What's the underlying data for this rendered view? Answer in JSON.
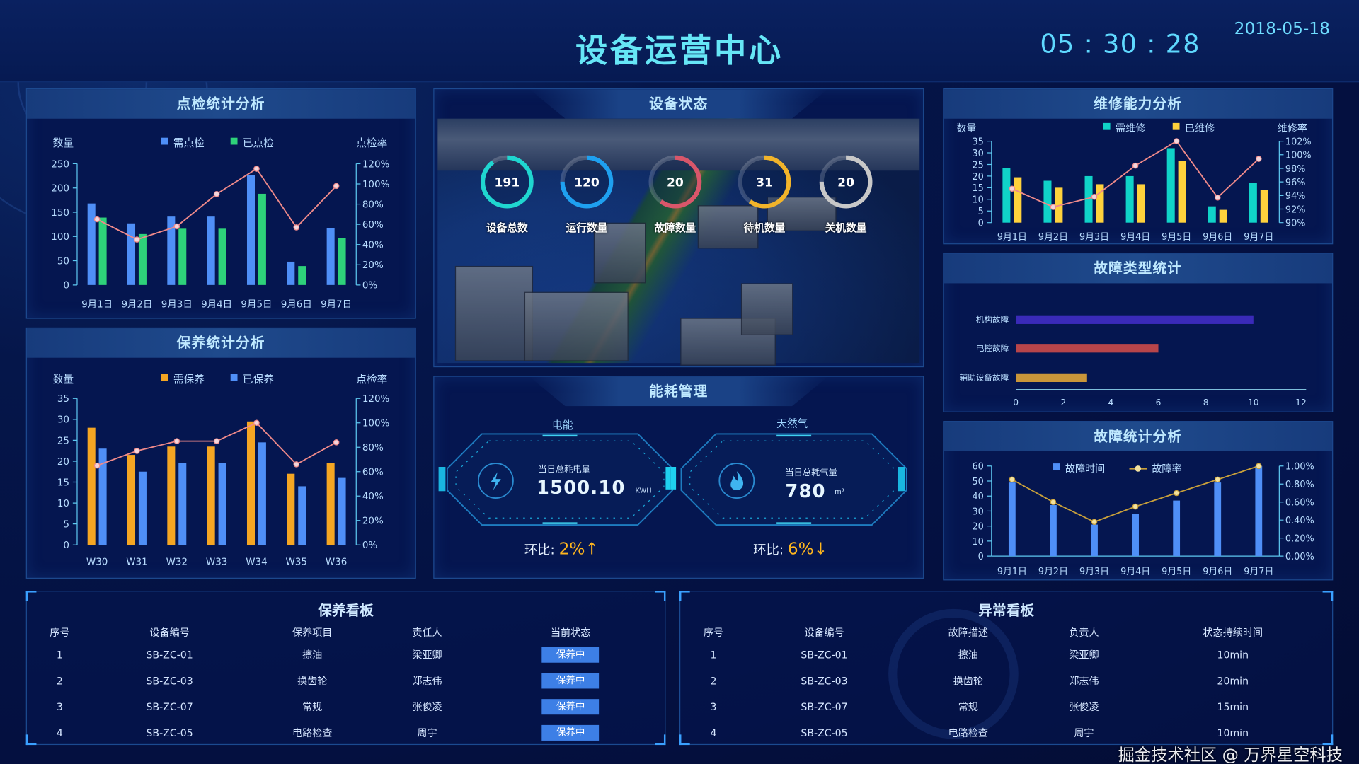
{
  "header": {
    "title": "设备运营中心",
    "clock": "05 : 30 : 28",
    "date": "2018-05-18"
  },
  "colors": {
    "blue_bar": "#4f8ff7",
    "green_bar": "#2ed27a",
    "orange_bar": "#f5a623",
    "teal_bar": "#10d3c8",
    "yellow_bar": "#ffd23c",
    "rate_line": "#f08a8a",
    "fault_line": "#c9a03a"
  },
  "inspection": {
    "title": "点检统计分析",
    "left_axis": "数量",
    "right_axis": "点检率",
    "chart_data": {
      "type": "bar",
      "categories": [
        "9月1日",
        "9月2日",
        "9月3日",
        "9月4日",
        "9月5日",
        "9月6日",
        "9月7日"
      ],
      "ylim": [
        0,
        250
      ],
      "yticks": [
        0,
        50,
        100,
        150,
        200,
        250
      ],
      "y2lim": [
        0,
        120
      ],
      "y2ticks": [
        "0%",
        "20%",
        "40%",
        "60%",
        "80%",
        "100%",
        "120%"
      ],
      "series": [
        {
          "name": "需点检",
          "type": "bar",
          "color": "#4f8ff7",
          "values": [
            168,
            127,
            141,
            141,
            226,
            48,
            117
          ]
        },
        {
          "name": "已点检",
          "type": "bar",
          "color": "#2ed27a",
          "values": [
            139,
            105,
            116,
            116,
            188,
            39,
            97
          ]
        },
        {
          "type": "line",
          "axis": "right",
          "color": "#f08a8a",
          "values": [
            65,
            45,
            58,
            90,
            115,
            57,
            98
          ]
        }
      ]
    }
  },
  "maintenance": {
    "title": "保养统计分析",
    "left_axis": "数量",
    "right_axis": "点检率",
    "chart_data": {
      "type": "bar",
      "categories": [
        "W30",
        "W31",
        "W32",
        "W33",
        "W34",
        "W35",
        "W36"
      ],
      "ylim": [
        0,
        35
      ],
      "yticks": [
        0,
        5,
        10,
        15,
        20,
        25,
        30,
        35
      ],
      "y2lim": [
        0,
        120
      ],
      "y2ticks": [
        "0%",
        "20%",
        "40%",
        "60%",
        "80%",
        "100%",
        "120%"
      ],
      "series": [
        {
          "name": "需保养",
          "type": "bar",
          "color": "#f5a623",
          "values": [
            28,
            21.5,
            23.5,
            23.5,
            29.5,
            17,
            19.5
          ]
        },
        {
          "name": "已保养",
          "type": "bar",
          "color": "#4f8ff7",
          "values": [
            23,
            17.5,
            19.5,
            19.5,
            24.5,
            14,
            16
          ]
        },
        {
          "type": "line",
          "axis": "right",
          "color": "#f08a8a",
          "values": [
            65,
            77,
            85,
            85,
            100,
            66,
            84
          ]
        }
      ]
    }
  },
  "status": {
    "title": "设备状态",
    "rings": [
      {
        "value": "191",
        "label": "设备总数",
        "color": "#1fd6d0",
        "fill": 0.9
      },
      {
        "value": "120",
        "label": "运行数量",
        "color": "#1ea0f0",
        "fill": 0.75
      },
      {
        "value": "20",
        "label": "故障数量",
        "color": "#d9566a",
        "fill": 0.6
      },
      {
        "value": "31",
        "label": "待机数量",
        "color": "#f2b42a",
        "fill": 0.6
      },
      {
        "value": "20",
        "label": "关机数量",
        "color": "#c8c8c8",
        "fill": 0.75
      }
    ]
  },
  "energy": {
    "title": "能耗管理",
    "electric": {
      "label": "电能",
      "caption": "当日总耗电量",
      "value": "1500.10",
      "unit": "KWH",
      "ratio_label": "环比:",
      "ratio": "2%",
      "arrow": "↑",
      "icon": "lightning-icon"
    },
    "gas": {
      "label": "天然气",
      "caption": "当日总耗气量",
      "value": "780",
      "unit": "m³",
      "ratio_label": "环比:",
      "ratio": "6%",
      "arrow": "↓",
      "icon": "flame-icon"
    }
  },
  "repair": {
    "title": "维修能力分析",
    "left_axis": "数量",
    "right_axis": "维修率",
    "chart_data": {
      "type": "bar",
      "categories": [
        "9月1日",
        "9月2日",
        "9月3日",
        "9月4日",
        "9月5日",
        "9月6日",
        "9月7日"
      ],
      "ylim": [
        0,
        35
      ],
      "yticks": [
        0,
        5,
        10,
        15,
        20,
        25,
        30,
        35
      ],
      "y2lim": [
        90,
        102
      ],
      "y2ticks": [
        "90%",
        "92%",
        "94%",
        "96%",
        "98%",
        "100%",
        "102%"
      ],
      "series": [
        {
          "name": "需维修",
          "type": "bar",
          "color": "#10d3c8",
          "values": [
            23.5,
            18,
            20,
            20,
            32,
            7,
            17
          ]
        },
        {
          "name": "已维修",
          "type": "bar",
          "color": "#ffd23c",
          "values": [
            19.5,
            15,
            16.5,
            16.5,
            26.5,
            5.5,
            14
          ]
        },
        {
          "type": "line",
          "axis": "right",
          "color": "#f08a8a",
          "values": [
            95,
            92.3,
            93.8,
            98.4,
            102,
            93.7,
            99.4
          ]
        }
      ]
    }
  },
  "fault_types": {
    "title": "故障类型统计",
    "chart_data": {
      "type": "bar",
      "orientation": "horizontal",
      "categories": [
        "机构故障",
        "电控故障",
        "辅助设备故障"
      ],
      "values": [
        10,
        6,
        3
      ],
      "colors": [
        "#3a2ab8",
        "#b8454a",
        "#c9963a"
      ],
      "xlim": [
        0,
        12
      ],
      "xticks": [
        0,
        2,
        4,
        6,
        8,
        10,
        12
      ]
    }
  },
  "fault_stats": {
    "title": "故障统计分析",
    "chart_data": {
      "type": "bar",
      "categories": [
        "9月1日",
        "9月2日",
        "9月3日",
        "9月4日",
        "9月5日",
        "9月6日",
        "9月7日"
      ],
      "ylim": [
        0,
        60
      ],
      "yticks": [
        0,
        10,
        20,
        30,
        40,
        50,
        60
      ],
      "y2lim": [
        0,
        1
      ],
      "y2ticks": [
        "0.00%",
        "0.20%",
        "0.40%",
        "0.60%",
        "0.80%",
        "1.00%"
      ],
      "series": [
        {
          "name": "故障时间",
          "type": "bar",
          "color": "#4f8ff7",
          "values": [
            49,
            34,
            21,
            28,
            37,
            49,
            60
          ]
        },
        {
          "name": "故障率",
          "type": "line",
          "axis": "right",
          "color": "#c9a03a",
          "values": [
            0.85,
            0.6,
            0.38,
            0.55,
            0.7,
            0.85,
            1.0
          ]
        }
      ]
    }
  },
  "maint_board": {
    "title": "保养看板",
    "columns": [
      "序号",
      "设备编号",
      "保养项目",
      "责任人",
      "当前状态"
    ],
    "rows": [
      [
        "1",
        "SB-ZC-01",
        "擦油",
        "梁亚卿",
        "保养中"
      ],
      [
        "2",
        "SB-ZC-03",
        "换齿轮",
        "郑志伟",
        "保养中"
      ],
      [
        "3",
        "SB-ZC-07",
        "常规",
        "张俊凌",
        "保养中"
      ],
      [
        "4",
        "SB-ZC-05",
        "电路检查",
        "周宇",
        "保养中"
      ]
    ]
  },
  "anomaly_board": {
    "title": "异常看板",
    "columns": [
      "序号",
      "设备编号",
      "故障描述",
      "负责人",
      "状态持续时间"
    ],
    "rows": [
      [
        "1",
        "SB-ZC-01",
        "擦油",
        "梁亚卿",
        "10min"
      ],
      [
        "2",
        "SB-ZC-03",
        "换齿轮",
        "郑志伟",
        "20min"
      ],
      [
        "3",
        "SB-ZC-07",
        "常规",
        "张俊凌",
        "15min"
      ],
      [
        "4",
        "SB-ZC-05",
        "电路检查",
        "周宇",
        "10min"
      ]
    ]
  },
  "watermark": "掘金技术社区 @ 万界星空科技"
}
